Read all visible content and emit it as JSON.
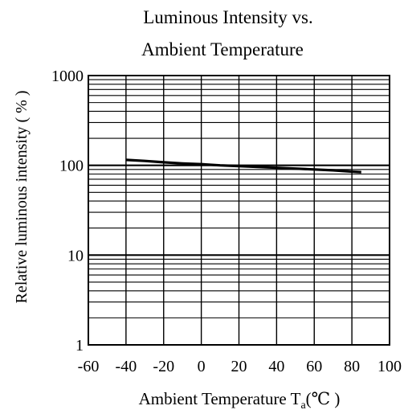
{
  "chart_data": {
    "type": "line",
    "title_lines": [
      "Luminous Intensity vs.",
      "Ambient Temperature"
    ],
    "ylabel": "Relative luminous intensity ( % )",
    "xlabel": "Ambient Temperature T",
    "xlabel_sub": "a",
    "xlabel_unit": "(℃ )",
    "x_ticks": [
      "-60",
      "-40",
      "-20",
      "0",
      "20",
      "40",
      "60",
      "80",
      "100"
    ],
    "y_ticks": [
      "1",
      "10",
      "100",
      "1000"
    ],
    "xlim": [
      -60,
      100
    ],
    "ylim": [
      1,
      1000
    ],
    "y_scale": "log",
    "grid": true,
    "series": [
      {
        "x": [
          -40,
          -30,
          -20,
          -10,
          0,
          10,
          20,
          30,
          40,
          50,
          60,
          70,
          80,
          85
        ],
        "y": [
          115,
          112,
          108,
          105,
          103,
          100,
          98,
          96,
          94,
          92,
          90,
          88,
          85,
          84
        ]
      }
    ]
  }
}
